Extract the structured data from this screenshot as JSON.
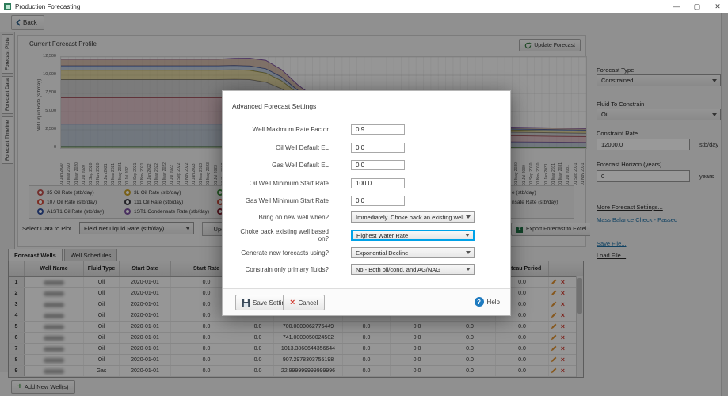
{
  "window": {
    "title": "Production Forecasting",
    "minimize": "—",
    "maximize": "▢",
    "close": "✕"
  },
  "toolbar": {
    "back_label": "Back"
  },
  "side_tabs": [
    {
      "label": "Forecast Plots"
    },
    {
      "label": "Forecast Data"
    },
    {
      "label": "Forecast Timeline"
    }
  ],
  "chart_panel": {
    "title": "Current Forecast Profile",
    "update_button": "Update Forecast"
  },
  "chart_data": {
    "type": "area",
    "stacked": true,
    "title": "Current Forecast Profile",
    "ylabel": "Net Liquid Rate (stb/day)",
    "ylim": [
      0,
      12500
    ],
    "grid": true,
    "legend_position": "bottom",
    "y_ticks": [
      "12,500",
      "10,000",
      "7,500",
      "5,000",
      "2,500",
      "0"
    ],
    "x_ticks": [
      "01 Jan 2020",
      "01 Mar 2020",
      "01 May 2020",
      "01 Jul 2020",
      "01 Sep 2020",
      "01 Nov 2020",
      "01 Jan 2021",
      "01 Mar 2021",
      "01 May 2021",
      "01 Jul 2021",
      "01 Sep 2021",
      "01 Nov 2021",
      "01 Jan 2022",
      "01 Mar 2022",
      "01 May 2022",
      "01 Jul 2022",
      "01 Sep 2022",
      "01 Nov 2022",
      "01 Jan 2023",
      "01 Mar 2023",
      "01 May 2023",
      "01 Jul 2023",
      "01 Sep 2023",
      "01 Nov 2023",
      "01 Jan 2024",
      "01 Mar 2024",
      "01 May 2024",
      "01 Jul 2024",
      "01 Sep 2024",
      "01 Nov 2024",
      "01 Jan 2025",
      "01 Mar 2025",
      "01 May 2025",
      "01 Jul 2025",
      "01 Sep 2025",
      "01 Nov 2025",
      "01 Jan 2026",
      "01 Mar 2026",
      "01 May 2026",
      "01 Jul 2026",
      "01 Sep 2026",
      "01 Nov 2026",
      "01 Jan 2027",
      "01 Mar 2027",
      "01 May 2027",
      "01 Jul 2027",
      "01 Sep 2027",
      "01 Nov 2027",
      "01 Jan 2028",
      "01 Mar 2028",
      "01 May 2028",
      "01 Jul 2028",
      "01 Sep 2028",
      "01 Nov 2028",
      "01 Jan 2029",
      "01 Mar 2029",
      "01 May 2029",
      "01 Jul 2029",
      "01 Sep 2029",
      "01 Nov 2029",
      "01 Jan 2030",
      "01 Mar 2030",
      "01 May 2030",
      "01 Jul 2030",
      "01 Sep 2030",
      "01 Nov 2030",
      "01 Jan 2031",
      "01 Mar 2031",
      "01 May 2031",
      "01 Jul 2031",
      "01 Sep 2031",
      "01 Nov 2031"
    ],
    "x_percent": [
      0,
      6,
      12,
      18,
      24,
      30,
      33,
      36,
      39,
      42,
      45,
      48,
      54,
      60,
      70,
      85,
      100
    ],
    "series": [
      {
        "name": "band-1",
        "fill": "#6a8f4f",
        "stroke": "#4d7a35",
        "values": [
          250,
          250,
          250,
          250,
          250,
          250,
          250,
          250,
          250,
          240,
          220,
          200,
          160,
          130,
          110,
          90,
          80
        ]
      },
      {
        "name": "band-2",
        "fill": "#8a9bb0",
        "stroke": "#5b4f9e",
        "values": [
          3050,
          3050,
          3050,
          3050,
          3050,
          3050,
          3050,
          3000,
          2900,
          2600,
          2200,
          1900,
          1400,
          1100,
          900,
          780,
          700
        ]
      },
      {
        "name": "band-3",
        "fill": "#c4909a",
        "stroke": "#9e3b47",
        "values": [
          3600,
          3600,
          3600,
          3600,
          3600,
          3600,
          3650,
          3700,
          3600,
          3300,
          2700,
          2200,
          1500,
          1150,
          950,
          850,
          800
        ]
      },
      {
        "name": "band-4",
        "fill": "#a8a8a8",
        "stroke": "#6e6e78",
        "values": [
          2500,
          2500,
          2500,
          2500,
          2500,
          2500,
          2500,
          2450,
          2300,
          2000,
          1600,
          1250,
          850,
          650,
          530,
          470,
          450
        ]
      },
      {
        "name": "band-5",
        "fill": "#c9b458",
        "stroke": "#8f8428",
        "values": [
          1300,
          1300,
          1300,
          1300,
          1300,
          1300,
          1300,
          1280,
          1250,
          1100,
          850,
          650,
          450,
          360,
          310,
          290,
          280
        ]
      },
      {
        "name": "band-6",
        "fill": "#8fa6c4",
        "stroke": "#2f4f9e",
        "values": [
          600,
          600,
          600,
          600,
          600,
          600,
          600,
          600,
          590,
          520,
          420,
          330,
          230,
          190,
          170,
          155,
          150
        ]
      },
      {
        "name": "band-7",
        "fill": "#b58870",
        "stroke": "#7a4fa0",
        "values": [
          900,
          900,
          900,
          900,
          900,
          900,
          950,
          1050,
          1150,
          1000,
          750,
          550,
          380,
          300,
          265,
          248,
          240
        ]
      }
    ],
    "legend": {
      "columns": [
        [
          {
            "label": "35 Oil Rate (stb/day)",
            "color": "#c0504d"
          },
          {
            "label": "107 Oil Rate (stb/day)",
            "color": "#d04a3a"
          },
          {
            "label": "A1ST1 Oil Rate (stb/day)",
            "color": "#2f4f9e"
          }
        ],
        [
          {
            "label": "3L Oil Rate (stb/day)",
            "color": "#c8a028"
          },
          {
            "label": "111 Oil Rate (stb/day)",
            "color": "#3a3a42"
          },
          {
            "label": "1ST1 Condensate Rate (stb/day)",
            "color": "#7a4fa0"
          }
        ],
        [
          {
            "label": "",
            "color": "#3f8f3f"
          },
          {
            "label": "",
            "color": "#d04a3a"
          },
          {
            "label": "",
            "color": "#8b2635"
          }
        ]
      ],
      "right_fragments": [
        {
          "text": "e (stb/day)",
          "row": 0
        },
        {
          "text": "nsate Rate (stb/day)",
          "row": 1
        }
      ]
    }
  },
  "plot_controls": {
    "select_label": "Select Data to Plot",
    "select_value": "Field Net Liquid Rate (stb/day)",
    "update_plot_label": "Update Pl",
    "export_label": "Export Forecast to Excel"
  },
  "right_panel": {
    "forecast_type_label": "Forecast Type",
    "forecast_type_value": "Constrained",
    "fluid_label": "Fluid To Constrain",
    "fluid_value": "Oil",
    "constraint_rate_label": "Constraint Rate",
    "constraint_rate_value": "12000.0",
    "constraint_rate_unit": "stb/day",
    "horizon_label": "Forecast Horizon (years)",
    "horizon_value": "0",
    "horizon_unit": "years",
    "links": [
      {
        "label": "More Forecast Settings...",
        "color": "#2b2b2b"
      },
      {
        "label": "Mass Balance Check - Passed",
        "color": "#1c6ea4"
      },
      {
        "label": "Save File...",
        "color": "#1c6ea4"
      },
      {
        "label": "Load File...",
        "color": "#2b2b2b"
      }
    ]
  },
  "bottom_tabs": {
    "active": "Forecast Wells",
    "inactive": "Well Schedules"
  },
  "table": {
    "headers": [
      "",
      "Well Name",
      "Fluid Type",
      "Start Date",
      "Start Rate",
      "",
      "",
      "",
      "",
      "",
      "Plateau Period",
      ""
    ],
    "rows": [
      {
        "cells": [
          "1",
          "",
          "Oil",
          "2020-01-01",
          "0.0",
          "",
          "",
          "",
          "",
          "",
          "0.0"
        ]
      },
      {
        "cells": [
          "2",
          "",
          "Oil",
          "2020-01-01",
          "0.0",
          "",
          "",
          "",
          "",
          "",
          "0.0"
        ]
      },
      {
        "cells": [
          "3",
          "",
          "Oil",
          "2020-01-01",
          "0.0",
          "",
          "",
          "",
          "",
          "",
          "0.0"
        ]
      },
      {
        "cells": [
          "4",
          "",
          "Oil",
          "2020-01-01",
          "0.0",
          "",
          "",
          "",
          "",
          "",
          "0.0"
        ]
      },
      {
        "cells": [
          "5",
          "",
          "Oil",
          "2020-01-01",
          "0.0",
          "0.0",
          "700.0000062776449",
          "0.0",
          "0.0",
          "0.0",
          "0.0"
        ]
      },
      {
        "cells": [
          "6",
          "",
          "Oil",
          "2020-01-01",
          "0.0",
          "0.0",
          "741.0000050024502",
          "0.0",
          "0.0",
          "0.0",
          "0.0"
        ]
      },
      {
        "cells": [
          "7",
          "",
          "Oil",
          "2020-01-01",
          "0.0",
          "0.0",
          "1013.3860644356644",
          "0.0",
          "0.0",
          "0.0",
          "0.0"
        ]
      },
      {
        "cells": [
          "8",
          "",
          "Oil",
          "2020-01-01",
          "0.0",
          "0.0",
          "907.2978303755198",
          "0.0",
          "0.0",
          "0.0",
          "0.0"
        ]
      },
      {
        "cells": [
          "9",
          "",
          "Gas",
          "2020-01-01",
          "0.0",
          "0.0",
          "22.999999999999996",
          "0.0",
          "0.0",
          "0.0",
          "0.0"
        ]
      }
    ]
  },
  "add_well_button": "Add New Well(s)",
  "modal": {
    "title": "Advanced Forecast Settings",
    "fields": [
      {
        "label": "Well Maximum Rate Factor",
        "value": "0.9",
        "type": "input"
      },
      {
        "label": "Oil Well Default EL",
        "value": "0.0",
        "type": "input"
      },
      {
        "label": "Gas Well Default EL",
        "value": "0.0",
        "type": "input"
      },
      {
        "label": "Oil Well Minimum Start Rate",
        "value": "100.0",
        "type": "input"
      },
      {
        "label": "Gas Well Minimum Start Rate",
        "value": "0.0",
        "type": "input"
      },
      {
        "label": "Bring on new well when?",
        "value": "Immediately. Choke back an existing well.",
        "type": "select",
        "focused": false
      },
      {
        "label": "Choke back existing well based on?",
        "value": "Highest Water Rate",
        "type": "select",
        "focused": true
      },
      {
        "label": "Generate new forecasts using?",
        "value": "Exponential Decline",
        "type": "select",
        "focused": false
      },
      {
        "label": "Constrain only primary fluids?",
        "value": "No - Both oil/cond. and AG/NAG",
        "type": "select",
        "focused": false
      }
    ],
    "buttons": {
      "save": "Save Settings",
      "cancel": "Cancel",
      "help": "Help"
    }
  },
  "colors": {
    "focus_blue": "#00a2e8",
    "edit_icon": "#e0912f",
    "delete_icon": "#d0392e",
    "excel_green": "#1e7145",
    "add_green": "#3f9142",
    "help_blue": "#1f7bc0"
  }
}
